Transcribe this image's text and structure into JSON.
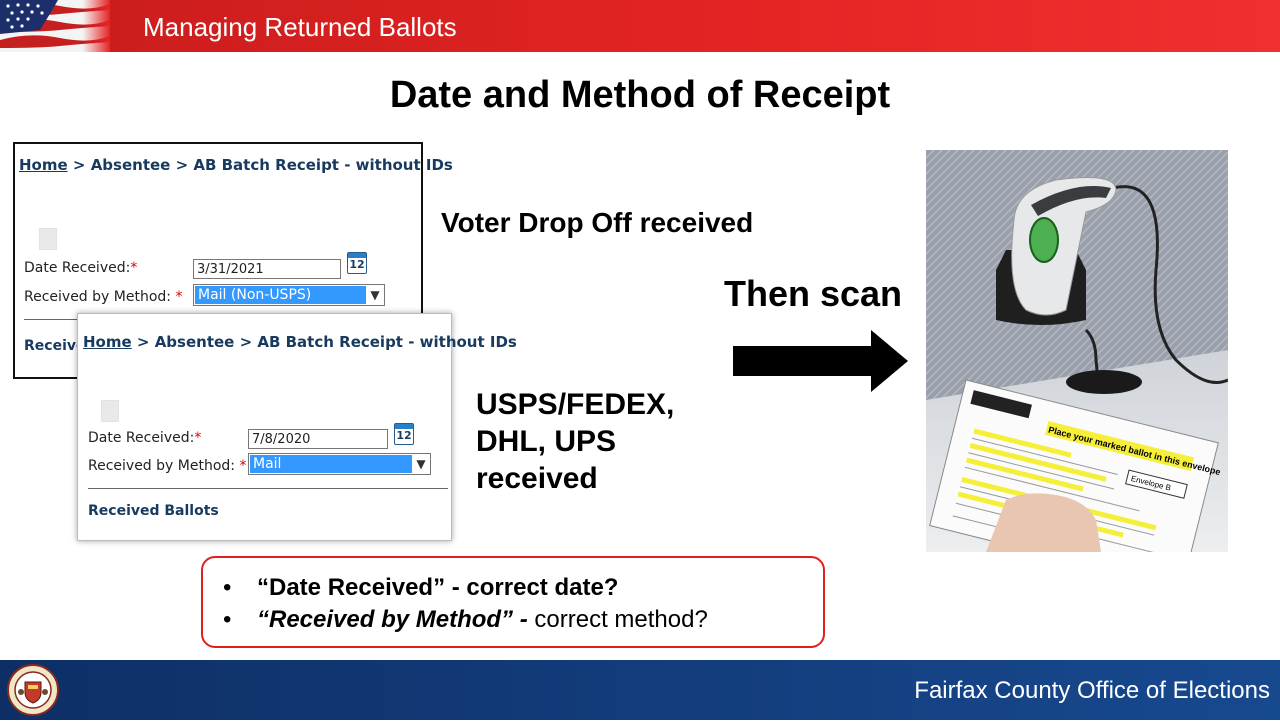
{
  "header": {
    "title": "Managing Returned Ballots"
  },
  "slide_title": "Date and Method of Receipt",
  "panel_1": {
    "breadcrumb": {
      "home": "Home",
      "sep1": " > ",
      "absentee": "Absentee",
      "sep2": " > ",
      "page": "AB Batch Receipt - without IDs"
    },
    "date_label": "Date Received:",
    "required_mark": "*",
    "date_value": "3/31/2021",
    "calendar_day": "12",
    "method_label": "Received by Method: ",
    "method_value": "Mail (Non-USPS)",
    "section_partial": "Receive"
  },
  "panel_2": {
    "breadcrumb": {
      "home": "Home",
      "sep1": " > ",
      "absentee": "Absentee",
      "sep2": " > ",
      "page": "AB Batch Receipt - without IDs"
    },
    "date_label": "Date Received:",
    "required_mark": "*",
    "date_value": "7/8/2020",
    "calendar_day": "12",
    "method_label": "Received by Method: ",
    "method_value": "Mail",
    "section": "Received Ballots"
  },
  "text": {
    "voter_drop_off": "Voter Drop Off received",
    "then_scan": "Then scan",
    "carriers_line1": "USPS/FEDEX,",
    "carriers_line2": "DHL, UPS",
    "carriers_line3": "received"
  },
  "photo": {
    "envelope_heading": "Place your marked ballot in this envelope",
    "envelope_tag": "Envelope B"
  },
  "callout": {
    "bullet_symbol": "•",
    "item1_a": "“Date Received” - correct date?",
    "item2_a": "“Received by Method” - ",
    "item2_b": " correct method?"
  },
  "footer": {
    "org": "Fairfax County Office of Elections"
  },
  "colors": {
    "header_red": "#e52424",
    "footer_blue": "#17498f",
    "select_highlight": "#3399ff",
    "callout_border": "#e02020"
  },
  "icons": [
    "us-flag-icon",
    "calendar-icon",
    "chevron-down-icon",
    "right-arrow-icon",
    "county-seal-icon"
  ]
}
